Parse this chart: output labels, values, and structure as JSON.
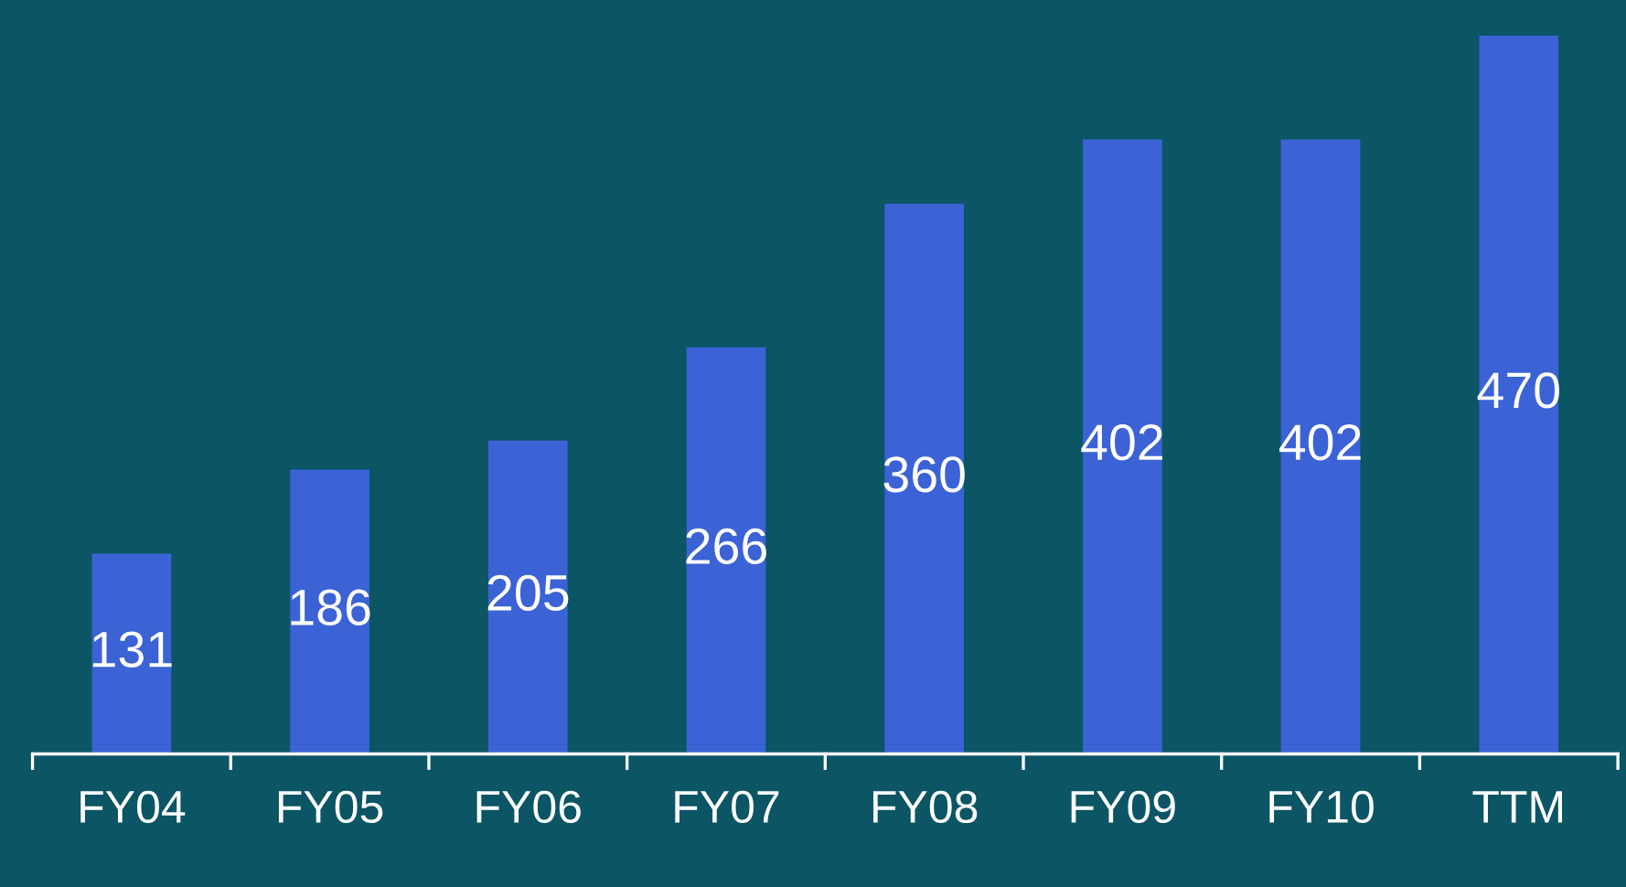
{
  "chart_data": {
    "type": "bar",
    "categories": [
      "FY04",
      "FY05",
      "FY06",
      "FY07",
      "FY08",
      "FY09",
      "FY10",
      "TTM"
    ],
    "values": [
      131,
      186,
      205,
      266,
      360,
      402,
      402,
      470
    ],
    "color": "#3b63d6",
    "data_labels": true,
    "grid": false,
    "legend": false
  }
}
